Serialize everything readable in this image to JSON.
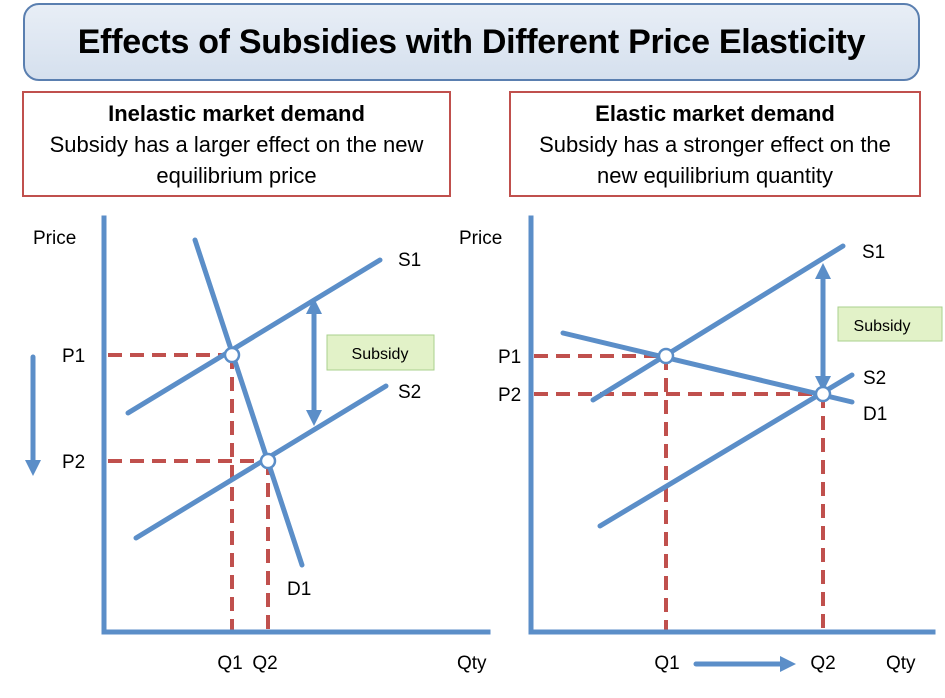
{
  "title": "Effects of Subsidies with Different Price Elasticity",
  "colors": {
    "curve": "#5b8ec8",
    "dashed": "#c0504d",
    "subsidy_box": "#e2f2c8",
    "panel_border": "#c0504d"
  },
  "left": {
    "heading": "Inelastic market demand",
    "line1": "Subsidy has a larger effect on the new",
    "line2": "equilibrium price",
    "y_label": "Price",
    "x_label": "Qty",
    "s1": "S1",
    "s2": "S2",
    "d1": "D1",
    "p1": "P1",
    "p2": "P2",
    "q1": "Q1",
    "q2": "Q2",
    "subsidy": "Subsidy",
    "arrow": "down-arrow-icon"
  },
  "right": {
    "heading": "Elastic market demand",
    "line1": "Subsidy has a stronger effect on the",
    "line2": "new equilibrium quantity",
    "y_label": "Price",
    "x_label": "Qty",
    "s1": "S1",
    "s2": "S2",
    "d1": "D1",
    "p1": "P1",
    "p2": "P2",
    "q1": "Q1",
    "q2": "Q2",
    "subsidy": "Subsidy",
    "arrow": "right-arrow-icon"
  }
}
